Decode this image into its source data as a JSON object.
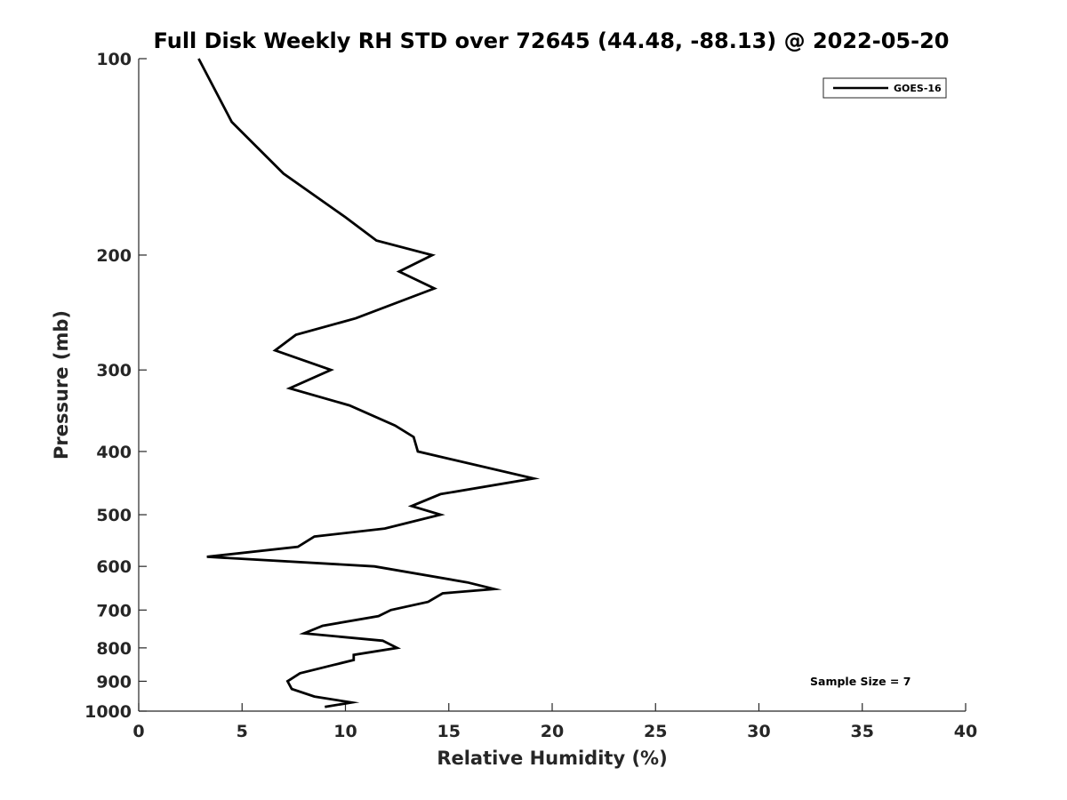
{
  "chart_data": {
    "type": "line",
    "title": "Full Disk Weekly RH STD over 72645 (44.48, -88.13) @ 2022-05-20",
    "xlabel": "Relative Humidity (%)",
    "ylabel": "Pressure (mb)",
    "xlim": [
      0,
      40
    ],
    "ylim": [
      100,
      1000
    ],
    "yscale": "log",
    "reversed_y": true,
    "x_ticks": [
      "0",
      "5",
      "10",
      "15",
      "20",
      "25",
      "30",
      "35",
      "40"
    ],
    "y_ticks": [
      "100",
      "200",
      "300",
      "400",
      "500",
      "600",
      "700",
      "800",
      "900",
      "1000"
    ],
    "legend": {
      "position": "top-right",
      "entries": [
        "GOES-16"
      ]
    },
    "annotation": "Sample Size = 7",
    "series": [
      {
        "name": "GOES-16",
        "color": "#000000",
        "points": [
          [
            2.9,
            100
          ],
          [
            4.5,
            125
          ],
          [
            7.0,
            150
          ],
          [
            10.0,
            175
          ],
          [
            11.5,
            190
          ],
          [
            14.2,
            200
          ],
          [
            12.6,
            212
          ],
          [
            14.3,
            225
          ],
          [
            10.5,
            250
          ],
          [
            7.6,
            265
          ],
          [
            6.6,
            280
          ],
          [
            9.3,
            300
          ],
          [
            7.3,
            320
          ],
          [
            10.2,
            340
          ],
          [
            12.4,
            365
          ],
          [
            13.3,
            380
          ],
          [
            13.5,
            400
          ],
          [
            19.1,
            440
          ],
          [
            14.6,
            465
          ],
          [
            13.2,
            485
          ],
          [
            14.6,
            500
          ],
          [
            11.9,
            525
          ],
          [
            8.5,
            540
          ],
          [
            7.7,
            560
          ],
          [
            3.3,
            580
          ],
          [
            11.4,
            600
          ],
          [
            15.9,
            635
          ],
          [
            17.2,
            650
          ],
          [
            14.7,
            660
          ],
          [
            14.0,
            680
          ],
          [
            12.2,
            700
          ],
          [
            11.6,
            715
          ],
          [
            8.9,
            740
          ],
          [
            8.0,
            760
          ],
          [
            11.8,
            780
          ],
          [
            12.5,
            800
          ],
          [
            10.4,
            820
          ],
          [
            10.4,
            835
          ],
          [
            9.4,
            850
          ],
          [
            7.8,
            875
          ],
          [
            7.2,
            900
          ],
          [
            7.4,
            925
          ],
          [
            8.5,
            950
          ],
          [
            10.3,
            970
          ],
          [
            9.0,
            985
          ]
        ]
      }
    ]
  }
}
